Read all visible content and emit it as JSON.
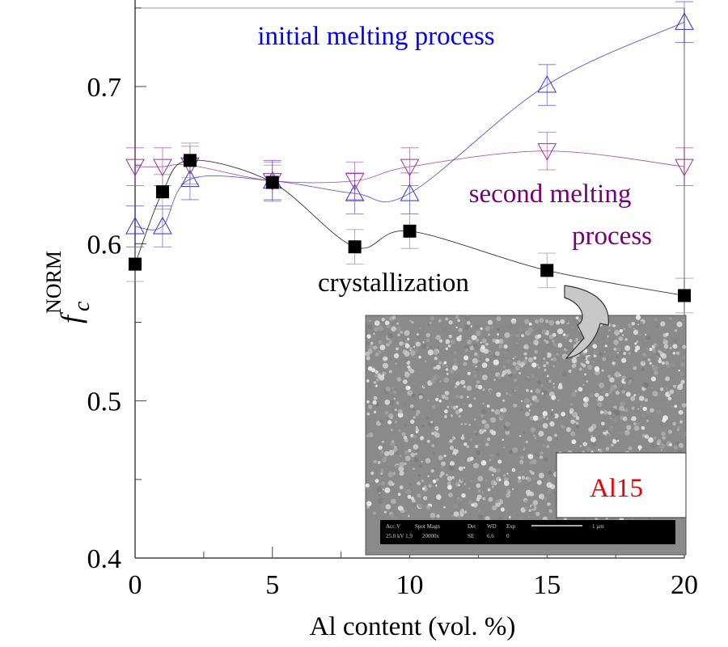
{
  "chart_data": {
    "type": "line",
    "title": "",
    "xlabel": "Al content (vol. %)",
    "ylabel": "f_c^NORM",
    "ylabel_main": "f",
    "ylabel_sub": "c",
    "ylabel_sup": "NORM",
    "xlim": [
      0,
      20
    ],
    "ylim": [
      0.4,
      0.75
    ],
    "x_ticks": [
      "0",
      "5",
      "10",
      "15",
      "20"
    ],
    "x_tick_values": [
      0,
      5,
      10,
      15,
      20
    ],
    "y_ticks": [
      "0.4",
      "0.5",
      "0.6",
      "0.7"
    ],
    "y_tick_values": [
      0.4,
      0.5,
      0.6,
      0.7
    ],
    "grid": false,
    "x": [
      0,
      1,
      2,
      5,
      8,
      10,
      15,
      20
    ],
    "series": [
      {
        "name": "initial melting process",
        "marker": "triangle-up",
        "color": "#3333cc",
        "label_color": "#0000ee",
        "values": [
          0.611,
          0.611,
          0.641,
          0.64,
          0.632,
          0.632,
          0.701,
          0.741
        ],
        "error": 0.013
      },
      {
        "name": "second melting process",
        "label_lines": [
          "second melting",
          "process"
        ],
        "marker": "triangle-down",
        "color": "#993399",
        "label_color": "#770077",
        "values": [
          0.649,
          0.649,
          0.65,
          0.64,
          0.64,
          0.649,
          0.659,
          0.649
        ],
        "error": 0.012
      },
      {
        "name": "crystallization",
        "marker": "square",
        "color": "#000000",
        "label_color": "#000000",
        "values": [
          0.587,
          0.633,
          0.653,
          0.639,
          0.598,
          0.608,
          0.583,
          0.567
        ],
        "error": 0.011
      }
    ],
    "inset": {
      "label": "Al15",
      "label_color": "#ee0000",
      "scale_bar": {
        "row1": [
          "Acc.V",
          "Spot Magn",
          "Det",
          "WD",
          "Exp",
          "1 µm"
        ],
        "row2": [
          "25.0 kV 1.9",
          "20000x",
          "SE",
          "6.6",
          "0"
        ]
      }
    }
  }
}
